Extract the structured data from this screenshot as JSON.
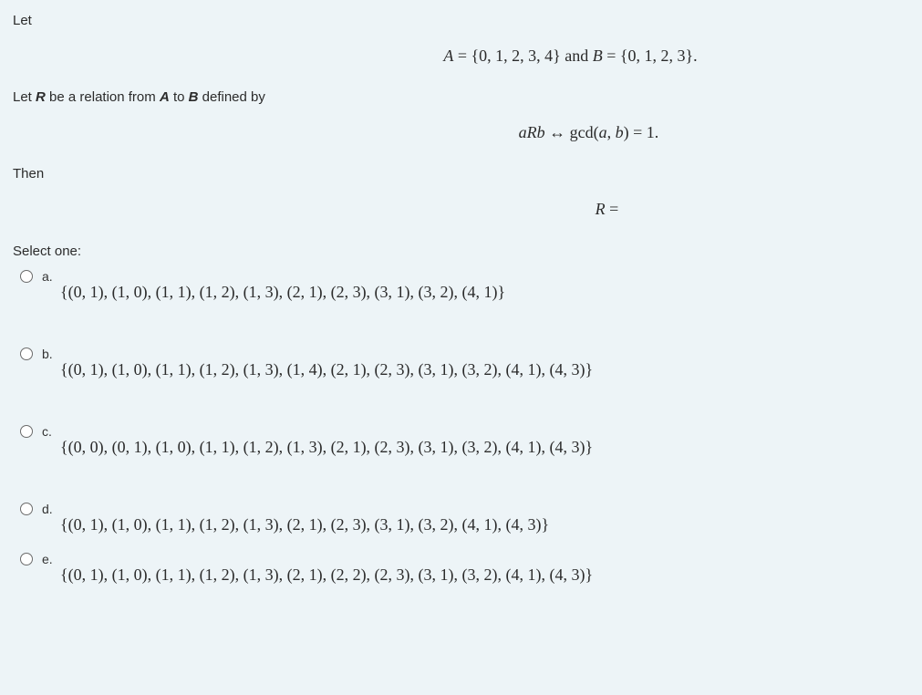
{
  "intro": {
    "line1": "Let",
    "equation1": "A = {0, 1, 2, 3, 4} and B = {0, 1, 2, 3}.",
    "line2_pre": "Let ",
    "line2_R": "R",
    "line2_mid": " be a relation from ",
    "line2_A": "A",
    "line2_mid2": " to ",
    "line2_B": "B",
    "line2_post": " defined by",
    "equation2": "aRb ↔ gcd(a, b) = 1.",
    "line3": "Then",
    "equation3": "R ="
  },
  "prompt": "Select one:",
  "options": [
    {
      "letter": "a.",
      "value": "{(0, 1), (1, 0), (1, 1), (1, 2), (1, 3), (2, 1), (2, 3), (3, 1), (3, 2), (4, 1)}"
    },
    {
      "letter": "b.",
      "value": "{(0, 1), (1, 0), (1, 1), (1, 2), (1, 3), (1, 4), (2, 1), (2, 3), (3, 1), (3, 2), (4, 1), (4, 3)}"
    },
    {
      "letter": "c.",
      "value": "{(0, 0), (0, 1), (1, 0), (1, 1), (1, 2), (1, 3), (2, 1), (2, 3), (3, 1), (3, 2), (4, 1), (4, 3)}"
    },
    {
      "letter": "d.",
      "value": "{(0, 1), (1, 0), (1, 1), (1, 2), (1, 3), (2, 1), (2, 3), (3, 1), (3, 2), (4, 1), (4, 3)}"
    },
    {
      "letter": "e.",
      "value": "{(0, 1), (1, 0), (1, 1), (1, 2), (1, 3), (2, 1), (2, 2), (2, 3), (3, 1), (3, 2), (4, 1), (4, 3)}"
    }
  ]
}
